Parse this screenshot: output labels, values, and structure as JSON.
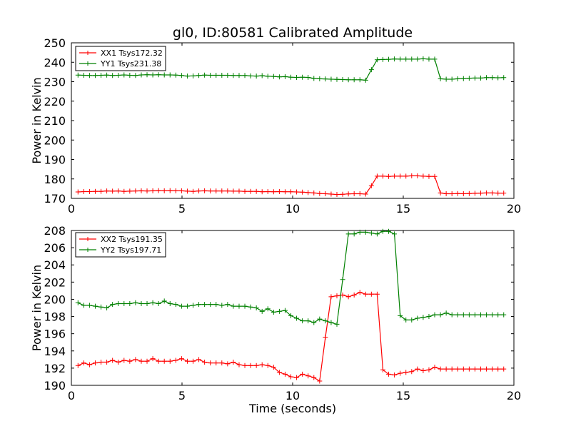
{
  "chart_data": [
    {
      "type": "line",
      "title": "gl0, ID:80581 Calibrated Amplitude",
      "xlabel": "",
      "ylabel": "Power in Kelvin",
      "xlim": [
        0,
        20
      ],
      "ylim": [
        170,
        250
      ],
      "xticks": [
        "0",
        "5",
        "10",
        "15",
        "20"
      ],
      "yticks": [
        "170",
        "180",
        "190",
        "200",
        "210",
        "220",
        "230",
        "240",
        "250"
      ],
      "legend_position": "top-left",
      "grid": false,
      "x": [
        0.3,
        0.56,
        0.82,
        1.08,
        1.34,
        1.6,
        1.86,
        2.12,
        2.38,
        2.64,
        2.9,
        3.16,
        3.42,
        3.68,
        3.94,
        4.2,
        4.46,
        4.72,
        4.98,
        5.24,
        5.5,
        5.76,
        6.02,
        6.28,
        6.54,
        6.8,
        7.06,
        7.32,
        7.58,
        7.84,
        8.1,
        8.36,
        8.62,
        8.88,
        9.14,
        9.4,
        9.66,
        9.92,
        10.18,
        10.44,
        10.7,
        10.96,
        11.22,
        11.48,
        11.74,
        12.0,
        12.26,
        12.52,
        12.78,
        13.04,
        13.3,
        13.56,
        13.82,
        14.08,
        14.34,
        14.6,
        14.86,
        15.12,
        15.38,
        15.64,
        15.9,
        16.16,
        16.42,
        16.68,
        16.94,
        17.2,
        17.46,
        17.72,
        17.98,
        18.24,
        18.5,
        18.76,
        19.02,
        19.28,
        19.54
      ],
      "series": [
        {
          "name": "XX1 Tsys172.32",
          "color": "#ff0000",
          "values": [
            173.3,
            173.5,
            173.5,
            173.6,
            173.6,
            173.8,
            173.7,
            173.8,
            173.6,
            173.7,
            173.8,
            173.9,
            173.8,
            173.9,
            174.0,
            173.9,
            174.0,
            173.9,
            173.9,
            173.7,
            173.6,
            173.8,
            173.9,
            173.8,
            173.8,
            173.8,
            173.8,
            173.7,
            173.7,
            173.6,
            173.6,
            173.6,
            173.4,
            173.5,
            173.4,
            173.5,
            173.4,
            173.4,
            173.3,
            173.2,
            173.0,
            172.8,
            172.5,
            172.4,
            172.2,
            172.0,
            172.1,
            172.3,
            172.4,
            172.4,
            172.2,
            176.5,
            181.4,
            181.4,
            181.3,
            181.4,
            181.4,
            181.4,
            181.6,
            181.6,
            181.4,
            181.3,
            181.3,
            172.8,
            172.4,
            172.4,
            172.5,
            172.4,
            172.5,
            172.6,
            172.7,
            172.8,
            172.8,
            172.7,
            172.7
          ]
        },
        {
          "name": "YY1 Tsys231.38",
          "color": "#008000",
          "values": [
            233.4,
            233.3,
            233.2,
            233.2,
            233.3,
            233.4,
            233.2,
            233.3,
            233.5,
            233.3,
            233.2,
            233.5,
            233.6,
            233.5,
            233.6,
            233.5,
            233.5,
            233.4,
            233.2,
            232.9,
            233.0,
            233.2,
            233.4,
            233.3,
            233.3,
            233.3,
            233.3,
            233.2,
            233.2,
            233.2,
            233.0,
            232.9,
            233.1,
            232.8,
            232.7,
            232.5,
            232.6,
            232.3,
            232.2,
            232.3,
            232.2,
            231.7,
            231.5,
            231.4,
            231.3,
            231.2,
            231.1,
            231.0,
            231.0,
            231.0,
            230.8,
            236.2,
            241.3,
            241.4,
            241.5,
            241.7,
            241.6,
            241.6,
            241.6,
            241.6,
            241.8,
            241.6,
            241.6,
            231.5,
            231.3,
            231.3,
            231.5,
            231.6,
            231.8,
            231.9,
            231.9,
            232.1,
            232.1,
            232.0,
            232.1
          ]
        }
      ]
    },
    {
      "type": "line",
      "title": "",
      "xlabel": "Time (seconds)",
      "ylabel": "Power in Kelvin",
      "xlim": [
        0,
        20
      ],
      "ylim": [
        190,
        208
      ],
      "xticks": [
        "0",
        "5",
        "10",
        "15",
        "20"
      ],
      "yticks": [
        "190",
        "192",
        "194",
        "196",
        "198",
        "200",
        "202",
        "204",
        "206",
        "208"
      ],
      "legend_position": "top-left",
      "grid": false,
      "x": [
        0.3,
        0.56,
        0.82,
        1.08,
        1.34,
        1.6,
        1.86,
        2.12,
        2.38,
        2.64,
        2.9,
        3.16,
        3.42,
        3.68,
        3.94,
        4.2,
        4.46,
        4.72,
        4.98,
        5.24,
        5.5,
        5.76,
        6.02,
        6.28,
        6.54,
        6.8,
        7.06,
        7.32,
        7.58,
        7.84,
        8.1,
        8.36,
        8.62,
        8.88,
        9.14,
        9.4,
        9.66,
        9.92,
        10.18,
        10.44,
        10.7,
        10.96,
        11.22,
        11.48,
        11.74,
        12.0,
        12.26,
        12.52,
        12.78,
        13.04,
        13.3,
        13.56,
        13.82,
        14.08,
        14.34,
        14.6,
        14.86,
        15.12,
        15.38,
        15.64,
        15.9,
        16.16,
        16.42,
        16.68,
        16.94,
        17.2,
        17.46,
        17.72,
        17.98,
        18.24,
        18.5,
        18.76,
        19.02,
        19.28,
        19.54
      ],
      "series": [
        {
          "name": "XX2 Tsys191.35",
          "color": "#ff0000",
          "values": [
            192.3,
            192.6,
            192.4,
            192.6,
            192.7,
            192.7,
            192.9,
            192.7,
            192.9,
            192.8,
            193.0,
            192.8,
            192.8,
            193.1,
            192.8,
            192.8,
            192.8,
            192.9,
            193.1,
            192.8,
            192.8,
            193.0,
            192.7,
            192.6,
            192.6,
            192.6,
            192.5,
            192.7,
            192.4,
            192.3,
            192.3,
            192.3,
            192.4,
            192.3,
            192.1,
            191.5,
            191.3,
            191.0,
            190.9,
            191.3,
            191.1,
            190.9,
            190.5,
            195.6,
            200.3,
            200.4,
            200.5,
            200.3,
            200.5,
            200.8,
            200.6,
            200.6,
            200.6,
            191.8,
            191.3,
            191.2,
            191.4,
            191.5,
            191.6,
            191.9,
            191.7,
            191.8,
            192.1,
            191.9,
            191.9,
            191.9,
            191.9,
            191.9,
            191.9,
            191.9,
            191.9,
            191.9,
            191.9,
            191.9,
            191.9
          ]
        },
        {
          "name": "YY2 Tsys197.71",
          "color": "#008000",
          "values": [
            199.6,
            199.3,
            199.3,
            199.2,
            199.1,
            199.0,
            199.4,
            199.5,
            199.5,
            199.5,
            199.6,
            199.5,
            199.5,
            199.6,
            199.5,
            199.8,
            199.5,
            199.4,
            199.2,
            199.2,
            199.3,
            199.4,
            199.4,
            199.4,
            199.4,
            199.3,
            199.4,
            199.2,
            199.2,
            199.2,
            199.1,
            199.0,
            198.6,
            198.9,
            198.5,
            198.6,
            198.7,
            198.1,
            197.8,
            197.5,
            197.5,
            197.3,
            197.7,
            197.5,
            197.3,
            197.1,
            202.3,
            207.6,
            207.6,
            207.8,
            207.8,
            207.7,
            207.6,
            207.9,
            207.9,
            207.6,
            198.1,
            197.6,
            197.6,
            197.8,
            197.9,
            198.0,
            198.2,
            198.2,
            198.4,
            198.2,
            198.2,
            198.2,
            198.2,
            198.2,
            198.2,
            198.2,
            198.2,
            198.2,
            198.2
          ]
        }
      ]
    }
  ]
}
